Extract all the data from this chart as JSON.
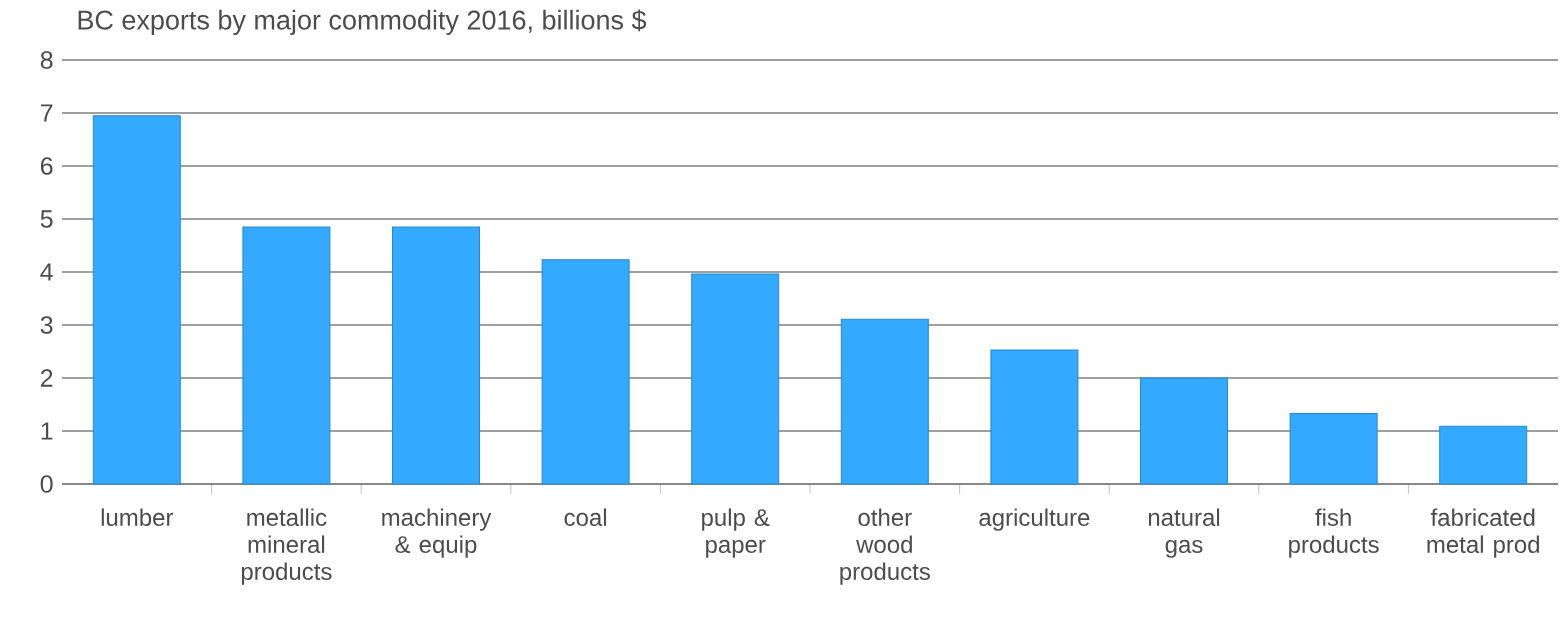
{
  "chart_data": {
    "type": "bar",
    "title": "BC exports by major commodity 2016, billions $",
    "categories": [
      "lumber",
      "metallic mineral products",
      "machinery & equip",
      "coal",
      "pulp & paper",
      "other wood products",
      "agriculture",
      "natural gas",
      "fish products",
      "fabricated metal prod"
    ],
    "values": [
      6.95,
      4.85,
      4.85,
      4.23,
      3.96,
      3.11,
      2.53,
      2.0,
      1.33,
      1.09
    ],
    "color": "#33aaff",
    "ylim": [
      0,
      8
    ],
    "yticks": [
      0,
      1,
      2,
      3,
      4,
      5,
      6,
      7,
      8
    ],
    "grid": "y"
  }
}
